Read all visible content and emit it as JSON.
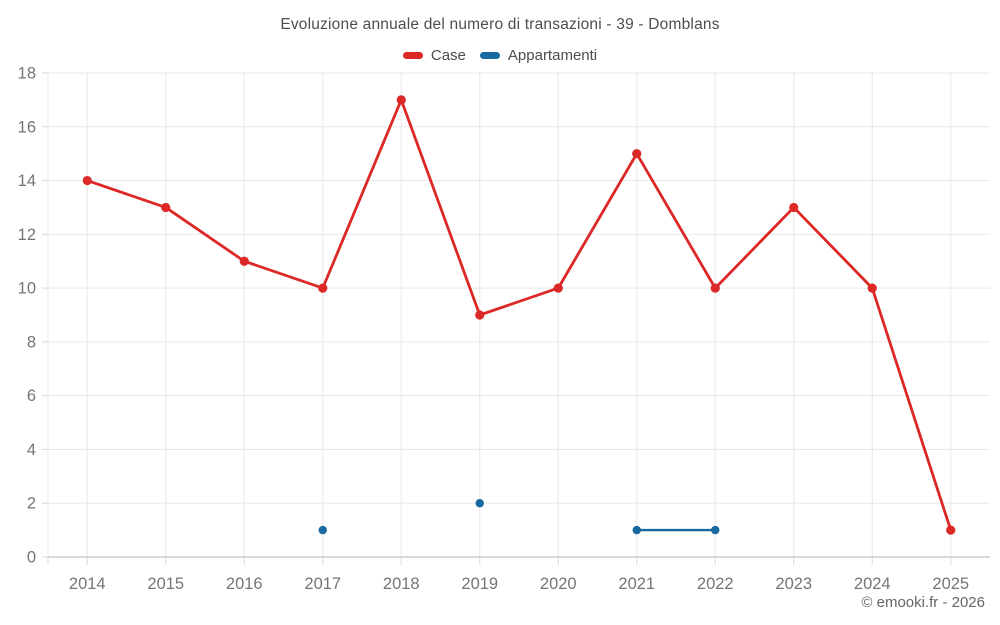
{
  "title": "Evoluzione annuale del numero di transazioni - 39 - Domblans",
  "copyright": "© emooki.fr - 2026",
  "chart_data": {
    "type": "line",
    "categories": [
      "2014",
      "2015",
      "2016",
      "2017",
      "2018",
      "2019",
      "2020",
      "2021",
      "2022",
      "2023",
      "2024",
      "2025"
    ],
    "series": [
      {
        "name": "Case",
        "color": "#dc2826",
        "values": [
          14,
          13,
          11,
          10,
          17,
          9,
          10,
          15,
          10,
          13,
          10,
          1
        ],
        "line_width": 2.8,
        "marker_radius": 4.6
      },
      {
        "name": "Appartamenti",
        "color": "#17699f",
        "values": [
          null,
          null,
          null,
          1,
          null,
          2,
          null,
          1,
          1,
          null,
          null,
          null
        ],
        "line_width": 2.4,
        "marker_radius": 4.2
      }
    ],
    "title": "Evoluzione annuale del numero di transazioni - 39 - Domblans",
    "xlabel": "",
    "ylabel": "",
    "ylim": [
      0,
      18
    ],
    "ytick_step": 2,
    "yticks": [
      0,
      2,
      4,
      6,
      8,
      10,
      12,
      14,
      16,
      18
    ],
    "grid": true,
    "legend_position": "top",
    "connect_nulls": false,
    "colors": {
      "grid": "#e8e8e8",
      "axis_line": "#b3b3b3",
      "tick": "#d9d9d9",
      "axis_label": "#757575",
      "title_text": "#4d4d4d",
      "copyright_text": "#666666"
    }
  }
}
